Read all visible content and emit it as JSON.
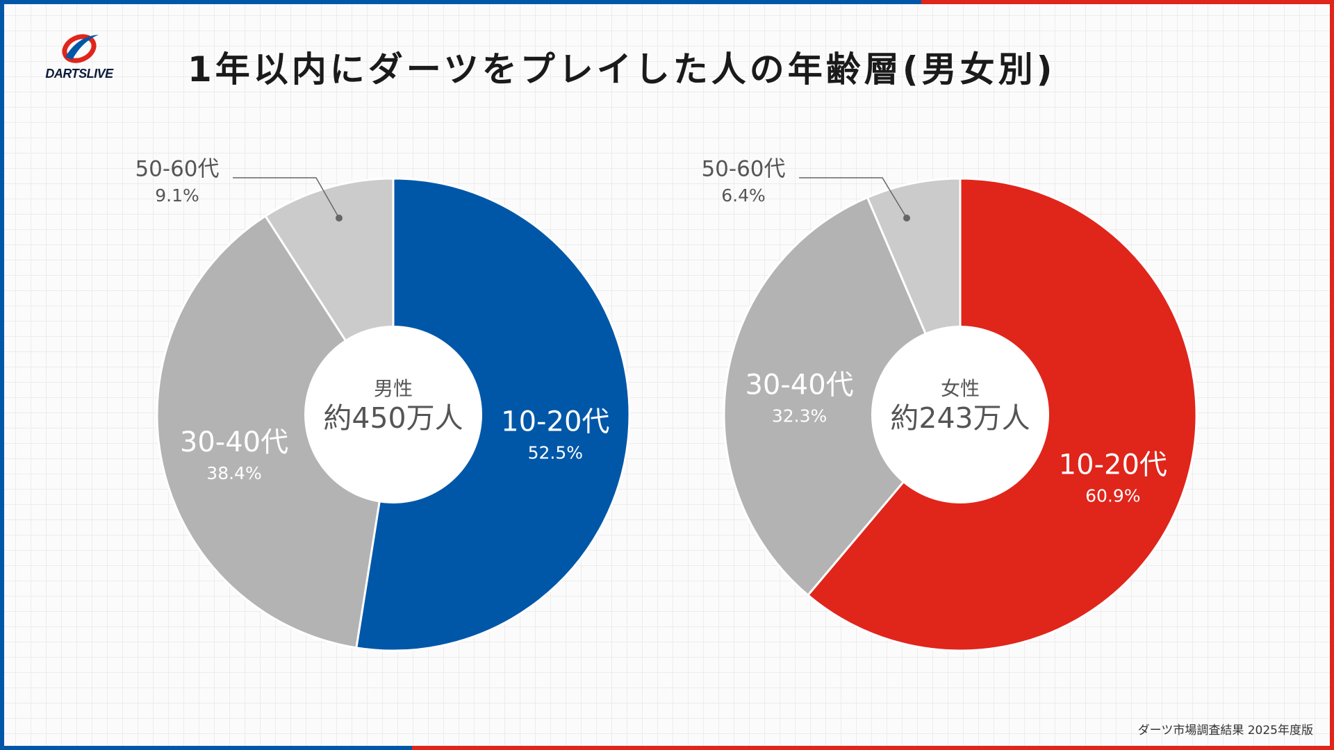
{
  "title": "1年以内にダーツをプレイした人の年齢層(男女別)",
  "logo_text": "DARTSLIVE",
  "footer": "ダーツ市場調査結果 2025年度版",
  "colors": {
    "blue": "#0057a8",
    "red": "#e0251b",
    "mid_gray": "#b3b3b3",
    "light_gray": "#cbcbcb",
    "label_dark": "#555555"
  },
  "chart_data": [
    {
      "type": "pie",
      "center_label": "男性",
      "center_value": "約450万人",
      "slices": [
        {
          "label": "10-20代",
          "value": 52.5,
          "text": "52.5%",
          "color": "#0057a8"
        },
        {
          "label": "30-40代",
          "value": 38.4,
          "text": "38.4%",
          "color": "#b3b3b3"
        },
        {
          "label": "50-60代",
          "value": 9.1,
          "text": "9.1%",
          "color": "#cbcbcb"
        }
      ]
    },
    {
      "type": "pie",
      "center_label": "女性",
      "center_value": "約243万人",
      "slices": [
        {
          "label": "10-20代",
          "value": 60.9,
          "text": "60.9%",
          "color": "#e0251b"
        },
        {
          "label": "30-40代",
          "value": 32.3,
          "text": "32.3%",
          "color": "#b3b3b3"
        },
        {
          "label": "50-60代",
          "value": 6.4,
          "text": "6.4%",
          "color": "#cbcbcb"
        }
      ]
    }
  ]
}
